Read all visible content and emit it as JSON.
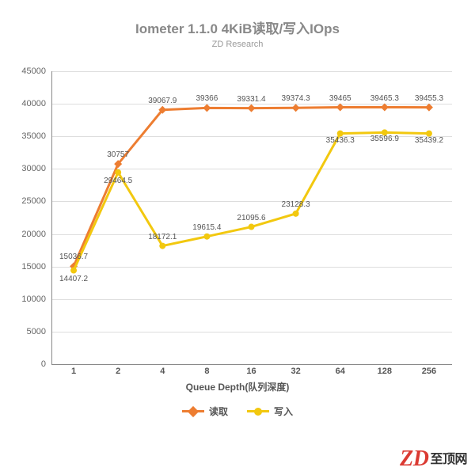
{
  "title": "Iometer 1.1.0 4KiB读取/写入IOps",
  "subtitle": "ZD Research",
  "xaxis": {
    "title": "Queue Depth(队列深度)",
    "categories": [
      "1",
      "2",
      "4",
      "8",
      "16",
      "32",
      "64",
      "128",
      "256"
    ]
  },
  "yaxis": {
    "min": 0,
    "max": 45000,
    "step": 5000,
    "ticks": [
      0,
      5000,
      10000,
      15000,
      20000,
      25000,
      30000,
      35000,
      40000,
      45000
    ]
  },
  "series": [
    {
      "name": "读取",
      "color": "#ed7d31",
      "marker": "diamond",
      "values": [
        15036.7,
        30757,
        39067.9,
        39366,
        39331.4,
        39374.3,
        39465,
        39465.3,
        39455.3
      ]
    },
    {
      "name": "写入",
      "color": "#f2c80f",
      "marker": "circle",
      "values": [
        14407.2,
        29464.5,
        18172.1,
        19615.4,
        21095.6,
        23128.3,
        35436.3,
        35596.9,
        35439.2
      ]
    }
  ],
  "legend": [
    "读取",
    "写入"
  ],
  "grid_color": "#dddddd",
  "axis_color": "#888888",
  "background": "#ffffff",
  "line_width": 3,
  "marker_size": 8,
  "title_color": "#888888",
  "watermark": {
    "logo": "ZD",
    "label": "至顶网",
    "logo_color": "#db3a32",
    "label_color": "#333333"
  }
}
